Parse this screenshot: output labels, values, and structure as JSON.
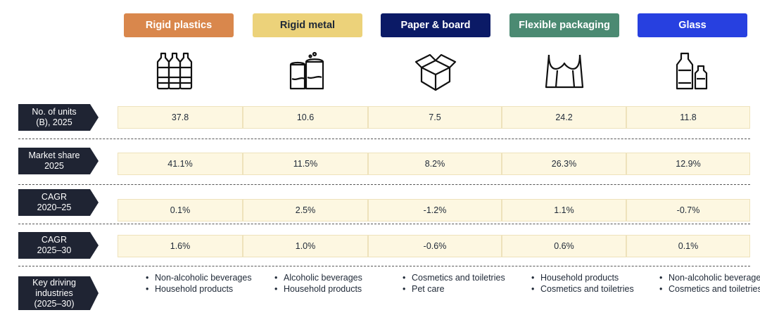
{
  "chart_data": {
    "type": "table",
    "columns": [
      {
        "name": "Rigid plastics",
        "color": "#d9874c",
        "text_color": "#ffffff",
        "icon": "plastic-bottles-icon"
      },
      {
        "name": "Rigid metal",
        "color": "#ecd27a",
        "text_color": "#1f2937",
        "icon": "metal-cans-icon"
      },
      {
        "name": "Paper & board",
        "color": "#0b1a66",
        "text_color": "#ffffff",
        "icon": "cardboard-box-icon"
      },
      {
        "name": "Flexible packaging",
        "color": "#4b8a72",
        "text_color": "#ffffff",
        "icon": "plastic-bag-icon"
      },
      {
        "name": "Glass",
        "color": "#2740e0",
        "text_color": "#ffffff",
        "icon": "glass-bottles-icon"
      }
    ],
    "rows": [
      {
        "label": "No. of units\n(B), 2025",
        "values": [
          "37.8",
          "10.6",
          "7.5",
          "24.2",
          "11.8"
        ]
      },
      {
        "label": "Market share\n2025",
        "values": [
          "41.1%",
          "11.5%",
          "8.2%",
          "26.3%",
          "12.9%"
        ]
      },
      {
        "label": "CAGR\n2020–25",
        "values": [
          "0.1%",
          "2.5%",
          "-1.2%",
          "1.1%",
          "-0.7%"
        ]
      },
      {
        "label": "CAGR\n2025–30",
        "values": [
          "1.6%",
          "1.0%",
          "-0.6%",
          "0.6%",
          "0.1%"
        ]
      }
    ],
    "industries_label": "Key driving\nindustries\n(2025–30)",
    "industries": [
      [
        "Non-alcoholic beverages",
        "Household products"
      ],
      [
        "Alcoholic beverages",
        "Household products"
      ],
      [
        "Cosmetics and toiletries",
        "Pet care"
      ],
      [
        "Household products",
        "Cosmetics and toiletries"
      ],
      [
        "Non-alcoholic beverages",
        "Cosmetics and toiletries"
      ]
    ]
  },
  "colors": {
    "label_bg": "#1f2433",
    "cell_bg": "#fdf7e1"
  }
}
